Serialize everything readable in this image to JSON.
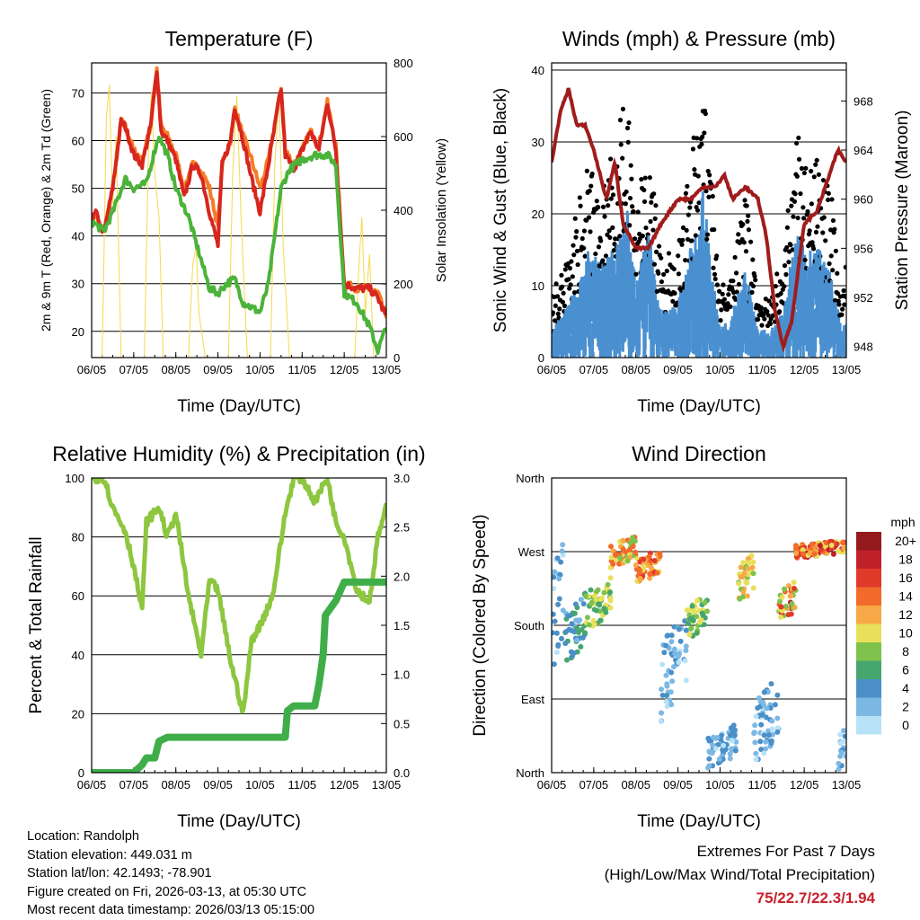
{
  "info": {
    "location": "Location: Randolph",
    "elevation": "Station elevation: 449.031 m",
    "latlon": "Station lat/lon: 42.1493; -78.901",
    "created": "Figure created on Fri, 2026-03-13, at 05:30 UTC",
    "timestamp": "Most recent data timestamp: 2026/03/13 05:15:00"
  },
  "extremes": {
    "title": "Extremes For Past 7 Days",
    "subtitle": "(High/Low/Max Wind/Total Precipitation)",
    "values": "75/22.7/22.3/1.94",
    "color": "#c8202c"
  },
  "chart_data": [
    {
      "type": "line",
      "title": "Temperature (F)",
      "xlabel": "Time (Day/UTC)",
      "ylabel": "2m & 9m T (Red, Orange) & 2m Td (Green)",
      "ylabel_right": "Solar Insolation (Yellow)",
      "xticks": [
        "06/05",
        "07/05",
        "08/05",
        "09/05",
        "10/05",
        "11/05",
        "12/05",
        "13/05"
      ],
      "yticks": [
        "20",
        "30",
        "40",
        "50",
        "60",
        "70"
      ],
      "yticks_right": [
        "0",
        "200",
        "400",
        "600",
        "800"
      ],
      "xlim": [
        0,
        7
      ],
      "ylim": [
        14.5,
        76.3
      ],
      "ylim_right": [
        0,
        800
      ],
      "grid": true,
      "series": [
        {
          "name": "Solar Insolation",
          "axis": "right",
          "color": "#f5d94a",
          "x": [
            0,
            0.25,
            0.35,
            0.42,
            0.5,
            0.58,
            0.7,
            1.25,
            1.35,
            1.42,
            1.5,
            1.6,
            1.7,
            2.3,
            2.4,
            2.48,
            2.55,
            2.7,
            3.25,
            3.35,
            3.45,
            3.55,
            3.7,
            4.25,
            4.35,
            4.45,
            4.55,
            4.7,
            5.3,
            5.4,
            5.5,
            5.7,
            6.25,
            6.35,
            6.42,
            6.5,
            6.6,
            6.7,
            7
          ],
          "y": [
            0,
            0,
            650,
            740,
            420,
            600,
            0,
            0,
            560,
            720,
            500,
            380,
            0,
            0,
            250,
            300,
            120,
            0,
            0,
            500,
            710,
            380,
            0,
            0,
            520,
            720,
            300,
            0,
            0,
            0,
            0,
            0,
            0,
            250,
            380,
            120,
            280,
            0,
            0
          ]
        },
        {
          "name": "9m T",
          "axis": "left",
          "color": "#f47c28",
          "x": [
            0,
            0.1,
            0.2,
            0.3,
            0.5,
            0.7,
            0.8,
            1.0,
            1.2,
            1.4,
            1.55,
            1.65,
            1.8,
            2.0,
            2.2,
            2.4,
            2.6,
            2.8,
            3.0,
            3.1,
            3.3,
            3.4,
            3.6,
            3.8,
            4.0,
            4.2,
            4.5,
            4.6,
            4.8,
            5.0,
            5.2,
            5.4,
            5.6,
            5.8,
            6.0,
            6.3,
            6.6,
            6.8,
            7.0
          ],
          "y": [
            43,
            45,
            42,
            41,
            50,
            64,
            63,
            58,
            56,
            63,
            75,
            63,
            61,
            57,
            50,
            55,
            54,
            50,
            42,
            55,
            60,
            67,
            61,
            56,
            50,
            56,
            71,
            58,
            55,
            58,
            62,
            59,
            68,
            59,
            30,
            29,
            29,
            28,
            23
          ]
        },
        {
          "name": "2m T",
          "axis": "left",
          "color": "#d7261e",
          "x": [
            0,
            0.1,
            0.2,
            0.3,
            0.5,
            0.7,
            0.8,
            1.0,
            1.2,
            1.4,
            1.55,
            1.65,
            1.8,
            2.0,
            2.2,
            2.4,
            2.6,
            2.8,
            3.0,
            3.1,
            3.3,
            3.4,
            3.6,
            3.8,
            4.0,
            4.2,
            4.5,
            4.6,
            4.8,
            5.0,
            5.2,
            5.4,
            5.6,
            5.8,
            6.0,
            6.3,
            6.6,
            6.8,
            7.0
          ],
          "y": [
            43,
            45,
            42,
            41,
            50,
            64,
            63,
            57,
            55,
            63,
            75,
            62,
            60,
            56,
            48,
            55,
            53,
            45,
            38,
            55,
            60,
            67,
            60,
            52,
            45,
            55,
            71,
            57,
            54,
            58,
            62,
            58,
            68,
            58,
            30,
            29,
            29,
            27,
            23
          ]
        },
        {
          "name": "2m Td",
          "axis": "left",
          "color": "#4bb33a",
          "x": [
            0,
            0.3,
            0.5,
            0.8,
            1.0,
            1.3,
            1.5,
            1.6,
            1.8,
            2.0,
            2.3,
            2.6,
            2.8,
            3.0,
            3.2,
            3.4,
            3.6,
            3.8,
            4.0,
            4.2,
            4.5,
            4.7,
            5.0,
            5.3,
            5.6,
            5.8,
            6.0,
            6.3,
            6.6,
            6.8,
            7.0
          ],
          "y": [
            43,
            41,
            45,
            52,
            50,
            51,
            58,
            61,
            57,
            50,
            44,
            35,
            29,
            28,
            30,
            31,
            26,
            25,
            24,
            30,
            50,
            54,
            56,
            57,
            57,
            55,
            28,
            26,
            21,
            16,
            21
          ]
        }
      ]
    },
    {
      "type": "scatter",
      "title": "Winds (mph) & Pressure (mb)",
      "xlabel": "Time (Day/UTC)",
      "ylabel": "Sonic Wind & Gust (Blue, Black)",
      "ylabel_right": "Station Pressure (Maroon)",
      "xticks": [
        "06/05",
        "07/05",
        "08/05",
        "09/05",
        "10/05",
        "11/05",
        "12/05",
        "13/05"
      ],
      "yticks": [
        "0",
        "10",
        "20",
        "30",
        "40"
      ],
      "yticks_right": [
        "948",
        "952",
        "956",
        "960",
        "964",
        "968"
      ],
      "xlim": [
        0,
        7
      ],
      "ylim": [
        0,
        41
      ],
      "ylim_right": [
        947.1,
        971.1
      ],
      "grid": true,
      "wind": {
        "color": "#4a90d0",
        "x": [
          0,
          0.3,
          0.6,
          0.9,
          1.2,
          1.5,
          1.8,
          2.0,
          2.3,
          2.6,
          3.0,
          3.3,
          3.6,
          3.8,
          4.0,
          4.3,
          4.6,
          4.9,
          5.2,
          5.5,
          5.8,
          6.0,
          6.3,
          6.6,
          6.9,
          7.0
        ],
        "y": [
          3,
          5,
          8,
          12,
          10,
          12,
          16,
          8,
          14,
          5,
          6,
          12,
          18,
          10,
          3,
          5,
          10,
          3,
          3,
          5,
          14,
          12,
          12,
          10,
          3,
          5
        ]
      },
      "gust": {
        "color": "#000000",
        "factor": 1.6
      },
      "pressure": {
        "color": "#a01c1c",
        "x": [
          0,
          0.2,
          0.4,
          0.6,
          0.8,
          1.0,
          1.3,
          1.5,
          1.7,
          2.0,
          2.3,
          2.6,
          3.0,
          3.3,
          3.6,
          3.9,
          4.1,
          4.3,
          4.6,
          4.9,
          5.1,
          5.3,
          5.5,
          5.7,
          6.0,
          6.3,
          6.6,
          6.8,
          7.0
        ],
        "y": [
          963,
          967,
          969,
          966,
          966,
          964,
          960,
          963,
          958,
          956,
          956,
          958,
          960,
          960,
          961,
          961,
          962,
          960,
          961,
          960,
          957,
          951,
          948,
          950,
          958,
          959,
          962,
          964,
          963
        ]
      }
    },
    {
      "type": "line",
      "title": "Relative Humidity (%) & Precipitation (in)",
      "xlabel": "Time (Day/UTC)",
      "ylabel": "Percent & Total Rainfall",
      "xticks": [
        "06/05",
        "07/05",
        "08/05",
        "09/05",
        "10/05",
        "11/05",
        "12/05",
        "13/05"
      ],
      "yticks": [
        "0",
        "20",
        "40",
        "60",
        "80",
        "100"
      ],
      "yticks_right": [
        "0.0",
        "0.5",
        "1.0",
        "1.5",
        "2.0",
        "2.5",
        "3.0"
      ],
      "xlim": [
        0,
        7
      ],
      "ylim": [
        0,
        100
      ],
      "ylim_right": [
        0,
        3
      ],
      "grid": true,
      "series": [
        {
          "name": "Relative Humidity",
          "axis": "left",
          "color": "#8dc63f",
          "x": [
            0,
            0.3,
            0.5,
            0.8,
            1.0,
            1.2,
            1.3,
            1.6,
            1.8,
            2.0,
            2.3,
            2.6,
            2.8,
            3.0,
            3.3,
            3.6,
            3.8,
            4.0,
            4.3,
            4.6,
            4.8,
            5.0,
            5.3,
            5.6,
            5.8,
            6.0,
            6.3,
            6.6,
            6.8,
            7.0
          ],
          "y": [
            100,
            100,
            90,
            82,
            70,
            55,
            85,
            90,
            80,
            88,
            60,
            40,
            65,
            62,
            38,
            20,
            45,
            50,
            60,
            88,
            100,
            100,
            92,
            100,
            85,
            80,
            62,
            58,
            80,
            90
          ]
        },
        {
          "name": "Total Precipitation",
          "axis": "right",
          "color": "#3fae49",
          "x": [
            0,
            1.0,
            1.2,
            1.3,
            1.5,
            1.6,
            1.8,
            4.6,
            4.65,
            4.8,
            5.3,
            5.4,
            5.5,
            5.55,
            5.8,
            6.0,
            7.0
          ],
          "y": [
            0,
            0,
            0.08,
            0.15,
            0.15,
            0.32,
            0.36,
            0.36,
            0.63,
            0.68,
            0.68,
            0.9,
            1.2,
            1.6,
            1.75,
            1.94,
            1.94
          ]
        }
      ]
    },
    {
      "type": "scatter",
      "title": "Wind Direction",
      "xlabel": "Time (Day/UTC)",
      "ylabel": "Direction (Colored By Speed)",
      "xticks": [
        "06/05",
        "07/05",
        "08/05",
        "09/05",
        "10/05",
        "11/05",
        "12/05",
        "13/05"
      ],
      "yticks": [
        "North",
        "East",
        "South",
        "West",
        "North"
      ],
      "xlim": [
        0,
        7
      ],
      "ylim": [
        0,
        360
      ],
      "legend": {
        "title": "mph",
        "labels": [
          "20+",
          "18",
          "16",
          "14",
          "12",
          "10",
          "8",
          "6",
          "4",
          "2",
          "0"
        ],
        "colors": [
          "#951a1d",
          "#c0202a",
          "#e03a2b",
          "#f26b2a",
          "#f8a846",
          "#e8e05a",
          "#7ec24c",
          "#45a66e",
          "#4a8fc8",
          "#7cb8e4",
          "#b8e2f8"
        ]
      },
      "clusters": [
        {
          "x": [
            0,
            0.3
          ],
          "dir": [
            120,
            300
          ],
          "spd": [
            1,
            6
          ]
        },
        {
          "x": [
            0.3,
            0.8
          ],
          "dir": [
            130,
            220
          ],
          "spd": [
            3,
            8
          ]
        },
        {
          "x": [
            0.8,
            1.4
          ],
          "dir": [
            170,
            240
          ],
          "spd": [
            6,
            12
          ]
        },
        {
          "x": [
            1.4,
            2.0
          ],
          "dir": [
            250,
            290
          ],
          "spd": [
            8,
            16
          ]
        },
        {
          "x": [
            2.0,
            2.6
          ],
          "dir": [
            230,
            275
          ],
          "spd": [
            10,
            18
          ]
        },
        {
          "x": [
            2.6,
            3.2
          ],
          "dir": [
            60,
            200
          ],
          "spd": [
            1,
            6
          ]
        },
        {
          "x": [
            3.2,
            3.7
          ],
          "dir": [
            160,
            220
          ],
          "spd": [
            6,
            12
          ]
        },
        {
          "x": [
            3.7,
            4.4
          ],
          "dir": [
            0,
            60
          ],
          "spd": [
            1,
            6
          ]
        },
        {
          "x": [
            4.4,
            4.8
          ],
          "dir": [
            200,
            270
          ],
          "spd": [
            8,
            14
          ]
        },
        {
          "x": [
            4.8,
            5.4
          ],
          "dir": [
            10,
            120
          ],
          "spd": [
            1,
            6
          ]
        },
        {
          "x": [
            5.4,
            5.8
          ],
          "dir": [
            180,
            240
          ],
          "spd": [
            8,
            20
          ]
        },
        {
          "x": [
            5.8,
            7.0
          ],
          "dir": [
            260,
            285
          ],
          "spd": [
            10,
            20
          ]
        },
        {
          "x": [
            6.8,
            7.0
          ],
          "dir": [
            0,
            60
          ],
          "spd": [
            1,
            5
          ]
        }
      ]
    }
  ]
}
